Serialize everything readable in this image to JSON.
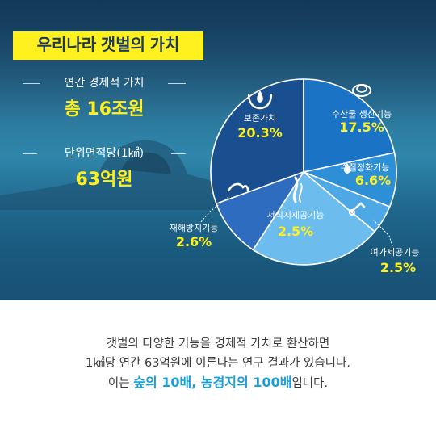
{
  "title": "우리나라 갯벌의 가치",
  "stats": [
    {
      "label": "연간 경제적 가치",
      "value": "총 16조원"
    },
    {
      "label": "단위면적당(1㎢)",
      "value": "63억원"
    }
  ],
  "colors": {
    "accent": "#fff01f",
    "caption_highlight": "#1a9fd8"
  },
  "chart_data": {
    "type": "pie",
    "slices": [
      {
        "label": "보존가치",
        "value": 20.3,
        "value_label": "20.3%",
        "icon": "water-hands-icon",
        "color": "#1a4f8f"
      },
      {
        "label": "수산물 생산기능",
        "value": 17.5,
        "value_label": "17.5%",
        "icon": "shell-icon",
        "color": "#1a73c4"
      },
      {
        "label": "수질정화기능",
        "value": 6.6,
        "value_label": "6.6%",
        "icon": "water-drop-icon",
        "color": "#2d8fd6"
      },
      {
        "label": "여가제공기능",
        "value": 2.5,
        "value_label": "2.5%",
        "icon": "snorkel-icon",
        "color": "#4fa8e6"
      },
      {
        "label": "서식지제공기능",
        "value": 2.5,
        "value_label": "2.5%",
        "icon": "seaweed-icon",
        "color": "#6cbcee"
      },
      {
        "label": "재해방지기능",
        "value": 2.6,
        "value_label": "2.6%",
        "icon": "wave-icon",
        "color": "#2e6cc0"
      }
    ]
  },
  "caption": {
    "line1": "갯벌의 다양한 기능을 경제적 가치로 환산하면",
    "line2": "1㎢당 연간 63억원에 이른다는 연구 결과가 있습니다.",
    "line3_pre": "이는 ",
    "line3_em": "숲의 10배, 농경지의 100배",
    "line3_post": "입니다."
  }
}
